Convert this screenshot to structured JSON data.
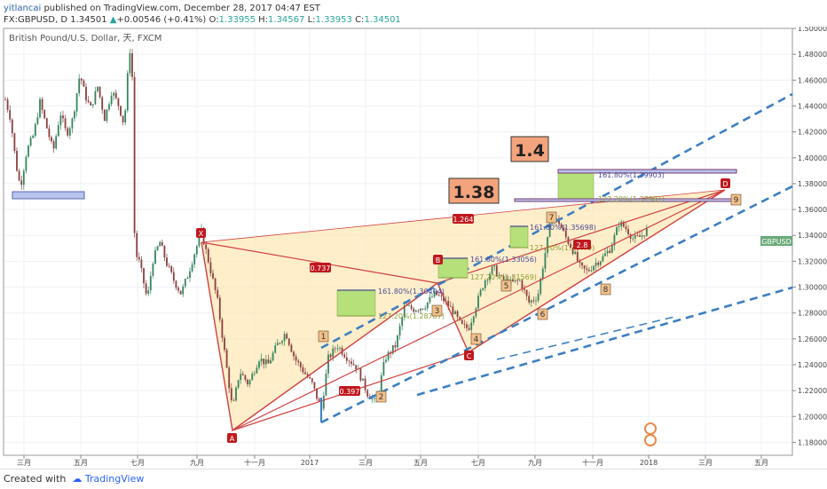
{
  "header": {
    "author": "yitlancai",
    "published_text": "published on TradingView.com, December 28, 2017 04:47 EST",
    "symbol_line": "FX:GBPUSD, D 1.34501",
    "change_arrow": "▲",
    "change": "+0.00546 (+0.41%)",
    "o_label": "O:",
    "o_value": "1.33955",
    "h_label": "H:",
    "h_value": "1.34567",
    "l_label": "L:",
    "l_value": "1.33953",
    "c_label": "C:",
    "c_value": "1.34501"
  },
  "chart_title": "British Pound/U.S. Dollar, 天, FXCM",
  "price_badge": "GBPUSD",
  "footer": {
    "created_with": "Created with",
    "brand": "TradingView"
  },
  "colors": {
    "up_candle": "#35845e",
    "down_candle": "#8a3f3f",
    "pattern_fill": "#fde8b8",
    "pattern_line": "#d04040",
    "channel_line": "#3c7fc2",
    "target_box": "#f4a47c",
    "fib_box": "#b5e07a",
    "zone_box": "#b8c3ee",
    "point_label": "#c0181e",
    "wave_label": "#f2c08a"
  },
  "chart_data": {
    "type": "candlestick",
    "y_axis": {
      "min": 1.17,
      "max": 1.5,
      "ticks": [
        "1.18000",
        "1.20000",
        "1.22000",
        "1.24000",
        "1.26000",
        "1.28000",
        "1.30000",
        "1.32000",
        "1.34000",
        "1.36000",
        "1.38000",
        "1.40000",
        "1.42000",
        "1.44000",
        "1.46000",
        "1.48000",
        "1.50000"
      ]
    },
    "x_axis_ticks": [
      "三月",
      "五月",
      "七月",
      "九月",
      "十一月",
      "2017",
      "三月",
      "五月",
      "七月",
      "九月",
      "十一月",
      "2018",
      "三月",
      "五月"
    ],
    "annotations": {
      "targets": [
        "1.4",
        "1.38"
      ],
      "pattern_points": [
        "X",
        "A",
        "B",
        "C",
        "D"
      ],
      "wave_numbers": [
        "1",
        "2",
        "3",
        "4",
        "5",
        "6",
        "7",
        "8",
        "9"
      ],
      "ratios": [
        "0.737",
        "0.397",
        "1.264",
        "2.8"
      ],
      "fib_labels": [
        "161.80%(1.30404)",
        "127.20%(1.28787)",
        "161.80%(1.33056)",
        "127.20%(1.31569)",
        "161.80%(1.35698)",
        "127.20%(1.34??0)",
        "161.80%(1.39903)",
        "127.20%(1.37981)"
      ]
    }
  }
}
